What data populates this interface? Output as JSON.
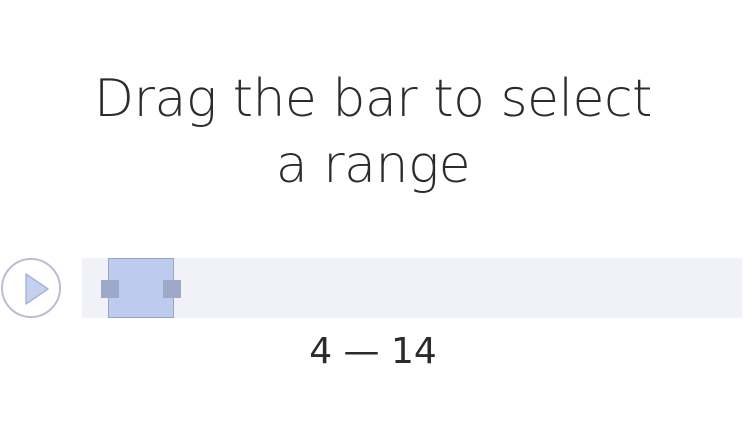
{
  "prompt": {
    "line1": "Drag the bar to select",
    "line2": "a range"
  },
  "play_button": {
    "icon": "play-icon"
  },
  "range": {
    "start": 4,
    "end": 14,
    "separator": "—",
    "scale_max": 100
  },
  "colors": {
    "track": "#f1f2f7",
    "selection": "#bccbee",
    "handle": "#9ea8c8",
    "play": "#b9bdd8"
  }
}
